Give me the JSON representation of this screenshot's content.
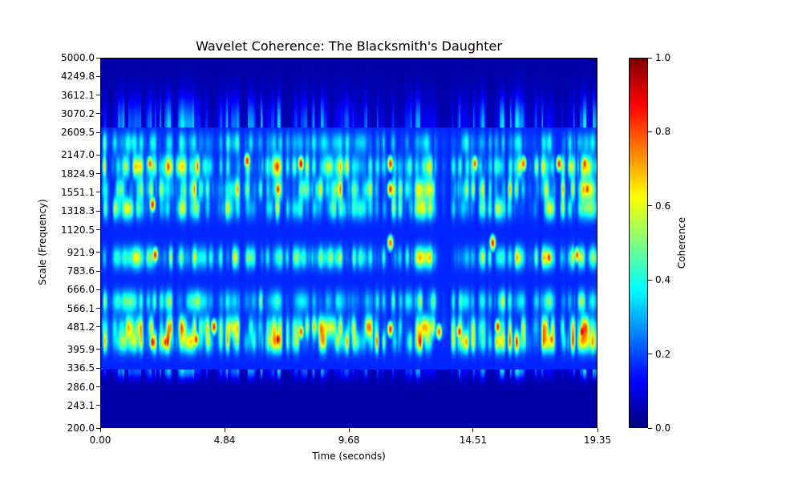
{
  "chart_data": {
    "type": "heatmap",
    "title": "Wavelet Coherence: The Blacksmith's Daughter",
    "xlabel": "Time (seconds)",
    "ylabel": "Scale (Frequency)",
    "colorbar_label": "Coherence",
    "colormap": "jet",
    "xlim": [
      0.0,
      19.35
    ],
    "ylim": [
      200.0,
      5000.0
    ],
    "y_scale": "log",
    "value_range": [
      0.0,
      1.0
    ],
    "x_ticks": [
      "0.00",
      "4.84",
      "9.68",
      "14.51",
      "19.35"
    ],
    "x_tick_values": [
      0.0,
      4.84,
      9.68,
      14.51,
      19.35
    ],
    "y_ticks": [
      "200.0",
      "243.1",
      "286.0",
      "336.5",
      "395.9",
      "481.2",
      "566.1",
      "666.0",
      "783.6",
      "921.9",
      "1120.5",
      "1318.3",
      "1551.1",
      "1824.9",
      "2147.0",
      "2609.5",
      "3070.2",
      "3612.1",
      "4249.8",
      "5000.0"
    ],
    "y_tick_values": [
      200.0,
      243.1,
      286.0,
      336.5,
      395.9,
      481.2,
      566.1,
      666.0,
      783.6,
      921.9,
      1120.5,
      1318.3,
      1551.1,
      1824.9,
      2147.0,
      2609.5,
      3070.2,
      3612.1,
      4249.8,
      5000.0
    ],
    "colorbar_ticks": [
      "0.0",
      "0.2",
      "0.4",
      "0.6",
      "0.8",
      "1.0"
    ],
    "colorbar_tick_values": [
      0.0,
      0.2,
      0.4,
      0.6,
      0.8,
      1.0
    ],
    "bands": [
      {
        "scale": 420,
        "strength": 0.7
      },
      {
        "scale": 480,
        "strength": 0.65
      },
      {
        "scale": 600,
        "strength": 0.45
      },
      {
        "scale": 880,
        "strength": 0.6
      },
      {
        "scale": 1350,
        "strength": 0.55
      },
      {
        "scale": 1600,
        "strength": 0.6
      },
      {
        "scale": 1950,
        "strength": 0.65
      },
      {
        "scale": 2400,
        "strength": 0.35
      }
    ],
    "hotspots": [
      {
        "t": 1.9,
        "scale": 2000,
        "value": 0.8
      },
      {
        "t": 2.0,
        "scale": 1400,
        "value": 0.85
      },
      {
        "t": 2.1,
        "scale": 900,
        "value": 0.85
      },
      {
        "t": 2.0,
        "scale": 420,
        "value": 0.9
      },
      {
        "t": 2.5,
        "scale": 420,
        "value": 0.85
      },
      {
        "t": 3.7,
        "scale": 430,
        "value": 0.85
      },
      {
        "t": 4.4,
        "scale": 480,
        "value": 0.85
      },
      {
        "t": 5.7,
        "scale": 2050,
        "value": 0.85
      },
      {
        "t": 6.9,
        "scale": 430,
        "value": 0.95
      },
      {
        "t": 6.9,
        "scale": 1600,
        "value": 0.85
      },
      {
        "t": 7.8,
        "scale": 2000,
        "value": 0.9
      },
      {
        "t": 7.8,
        "scale": 460,
        "value": 0.8
      },
      {
        "t": 11.3,
        "scale": 2000,
        "value": 0.85
      },
      {
        "t": 11.3,
        "scale": 1600,
        "value": 0.85
      },
      {
        "t": 11.3,
        "scale": 1000,
        "value": 0.8
      },
      {
        "t": 11.3,
        "scale": 470,
        "value": 0.85
      },
      {
        "t": 13.2,
        "scale": 460,
        "value": 0.8
      },
      {
        "t": 14.0,
        "scale": 460,
        "value": 0.85
      },
      {
        "t": 14.6,
        "scale": 2000,
        "value": 0.8
      },
      {
        "t": 15.3,
        "scale": 1000,
        "value": 0.85
      },
      {
        "t": 15.5,
        "scale": 480,
        "value": 0.85
      },
      {
        "t": 16.5,
        "scale": 2000,
        "value": 0.8
      },
      {
        "t": 17.5,
        "scale": 880,
        "value": 0.85
      },
      {
        "t": 17.6,
        "scale": 430,
        "value": 0.8
      },
      {
        "t": 17.9,
        "scale": 2000,
        "value": 0.85
      },
      {
        "t": 18.6,
        "scale": 900,
        "value": 0.8
      },
      {
        "t": 18.8,
        "scale": 460,
        "value": 0.95
      },
      {
        "t": 18.9,
        "scale": 2000,
        "value": 0.85
      },
      {
        "t": 19.0,
        "scale": 1600,
        "value": 0.85
      }
    ]
  }
}
